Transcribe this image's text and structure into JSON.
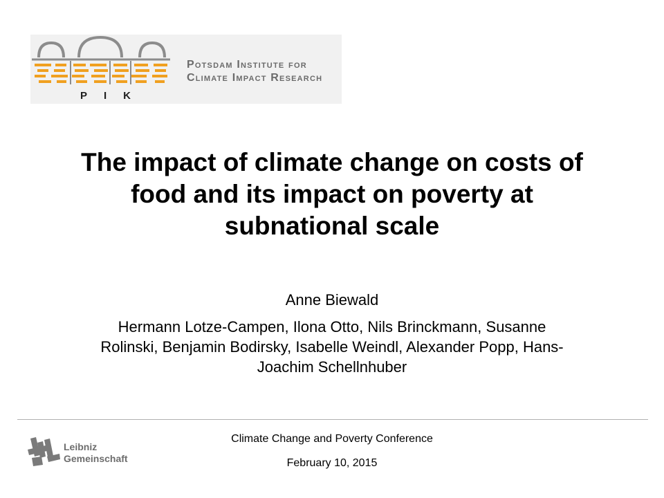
{
  "logo": {
    "letters": "PIK",
    "name_line1": "Potsdam Institute for",
    "name_line2": "Climate Impact Research",
    "colors": {
      "orange": "#f0a020",
      "gray": "#8c8c8c"
    }
  },
  "title": {
    "line1": "The impact of climate change on costs of",
    "line2": "food and its impact on poverty at",
    "line3": "subnational scale"
  },
  "author": "Anne Biewald",
  "coauthors": {
    "line1": "Hermann Lotze-Campen, Ilona Otto, Nils Brinckmann, Susanne",
    "line2": "Rolinski, Benjamin Bodirsky, Isabelle Weindl, Alexander Popp, Hans-",
    "line3": "Joachim Schellnhuber"
  },
  "footer": {
    "conference": "Climate Change and Poverty Conference",
    "date": "February 10, 2015",
    "leibniz_line1": "Leibniz",
    "leibniz_line2": "Gemeinschaft"
  }
}
